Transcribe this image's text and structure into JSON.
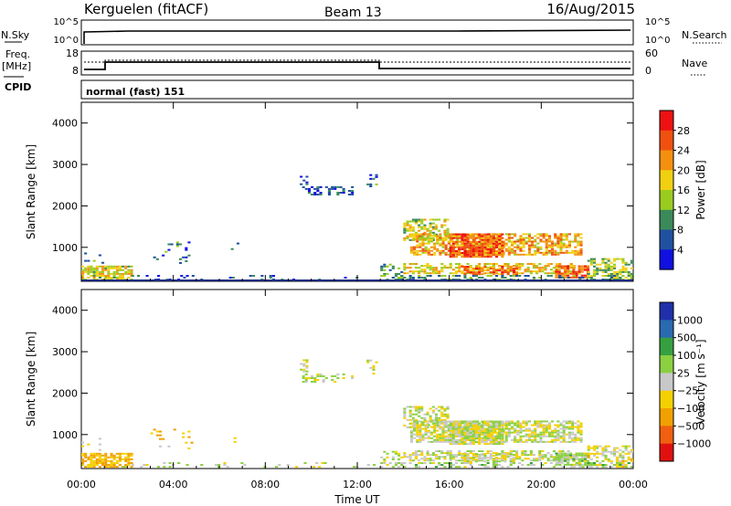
{
  "header": {
    "station": "Kerguelen (fitACF)",
    "beam": "Beam 13",
    "date": "16/Aug/2015"
  },
  "panels": {
    "nsky": {
      "label": "N.Sky",
      "right_label": "N.Search",
      "left_ticks": [
        "10^5",
        "10^0"
      ],
      "right_ticks": [
        "10^5",
        "10^0"
      ]
    },
    "freq": {
      "label_line1": "Freq.",
      "label_line2": "[MHz]",
      "right_label": "Nave",
      "cpid_label": "CPID",
      "left_ticks": [
        "18",
        "8"
      ],
      "right_ticks": [
        "60",
        "0"
      ],
      "mode_text": "normal (fast) 151"
    }
  },
  "power_colorbar": {
    "title": "Power [dB]",
    "ticks": [
      "28",
      "24",
      "20",
      "16",
      "12",
      "8",
      "4"
    ],
    "colors": [
      "#ee1111",
      "#f05010",
      "#f39010",
      "#f0d010",
      "#9acc20",
      "#3a8a5a",
      "#2050a0",
      "#1010e0"
    ]
  },
  "velocity_colorbar": {
    "title": "Velocity [m s⁻¹]",
    "ticks": [
      "1000",
      "500",
      "100",
      "25",
      "−25",
      "−100",
      "−500",
      "−1000"
    ],
    "colors": [
      "#2030a8",
      "#2a6ab0",
      "#36a040",
      "#8ad040",
      "#c8c8c8",
      "#f4d000",
      "#f0a000",
      "#f06010",
      "#e01010"
    ]
  },
  "chart_data": [
    {
      "type": "heatmap",
      "title": "Power",
      "xlabel": "Time UT",
      "ylabel": "Slant Range [km]",
      "xlim": [
        0,
        24
      ],
      "ylim": [
        180,
        4500
      ],
      "xticks": [
        "00:00",
        "04:00",
        "08:00",
        "12:00",
        "16:00",
        "20:00",
        "00:00"
      ],
      "yticks": [
        1000,
        2000,
        3000,
        4000
      ],
      "series": [
        {
          "name": "Power",
          "x_hours": [
            0.5,
            1.5,
            5.0,
            9.8,
            10.5,
            11.5,
            12.5,
            14.5,
            15.5,
            16.5,
            17.5,
            18.5,
            19.5,
            20.5,
            21.5,
            22.5
          ],
          "range_km": [
            400,
            450,
            800,
            2600,
            2300,
            2300,
            2500,
            1100,
            1200,
            1000,
            900,
            1000,
            900,
            1000,
            400,
            300
          ],
          "power_db": [
            18,
            14,
            8,
            6,
            6,
            6,
            8,
            20,
            24,
            26,
            24,
            22,
            20,
            18,
            24,
            16
          ]
        }
      ]
    },
    {
      "type": "heatmap",
      "title": "Velocity",
      "xlabel": "Time UT",
      "ylabel": "Slant Range [km]",
      "xlim": [
        0,
        24
      ],
      "ylim": [
        180,
        4500
      ],
      "xticks": [
        "00:00",
        "04:00",
        "08:00",
        "12:00",
        "16:00",
        "20:00",
        "00:00"
      ],
      "yticks": [
        1000,
        2000,
        3000,
        4000
      ],
      "series": [
        {
          "name": "Velocity",
          "x_hours": [
            0.5,
            2.0,
            4.0,
            10.0,
            11.5,
            14.5,
            15.5,
            16.5,
            17.5,
            18.5,
            19.5,
            20.5,
            21.5
          ],
          "range_km": [
            400,
            500,
            900,
            2500,
            2400,
            1300,
            1200,
            1000,
            900,
            800,
            800,
            800,
            500
          ],
          "velocity_ms": [
            -100,
            -100,
            -100,
            0,
            0,
            0,
            0,
            0,
            0,
            0,
            0,
            0,
            50
          ]
        }
      ]
    }
  ]
}
